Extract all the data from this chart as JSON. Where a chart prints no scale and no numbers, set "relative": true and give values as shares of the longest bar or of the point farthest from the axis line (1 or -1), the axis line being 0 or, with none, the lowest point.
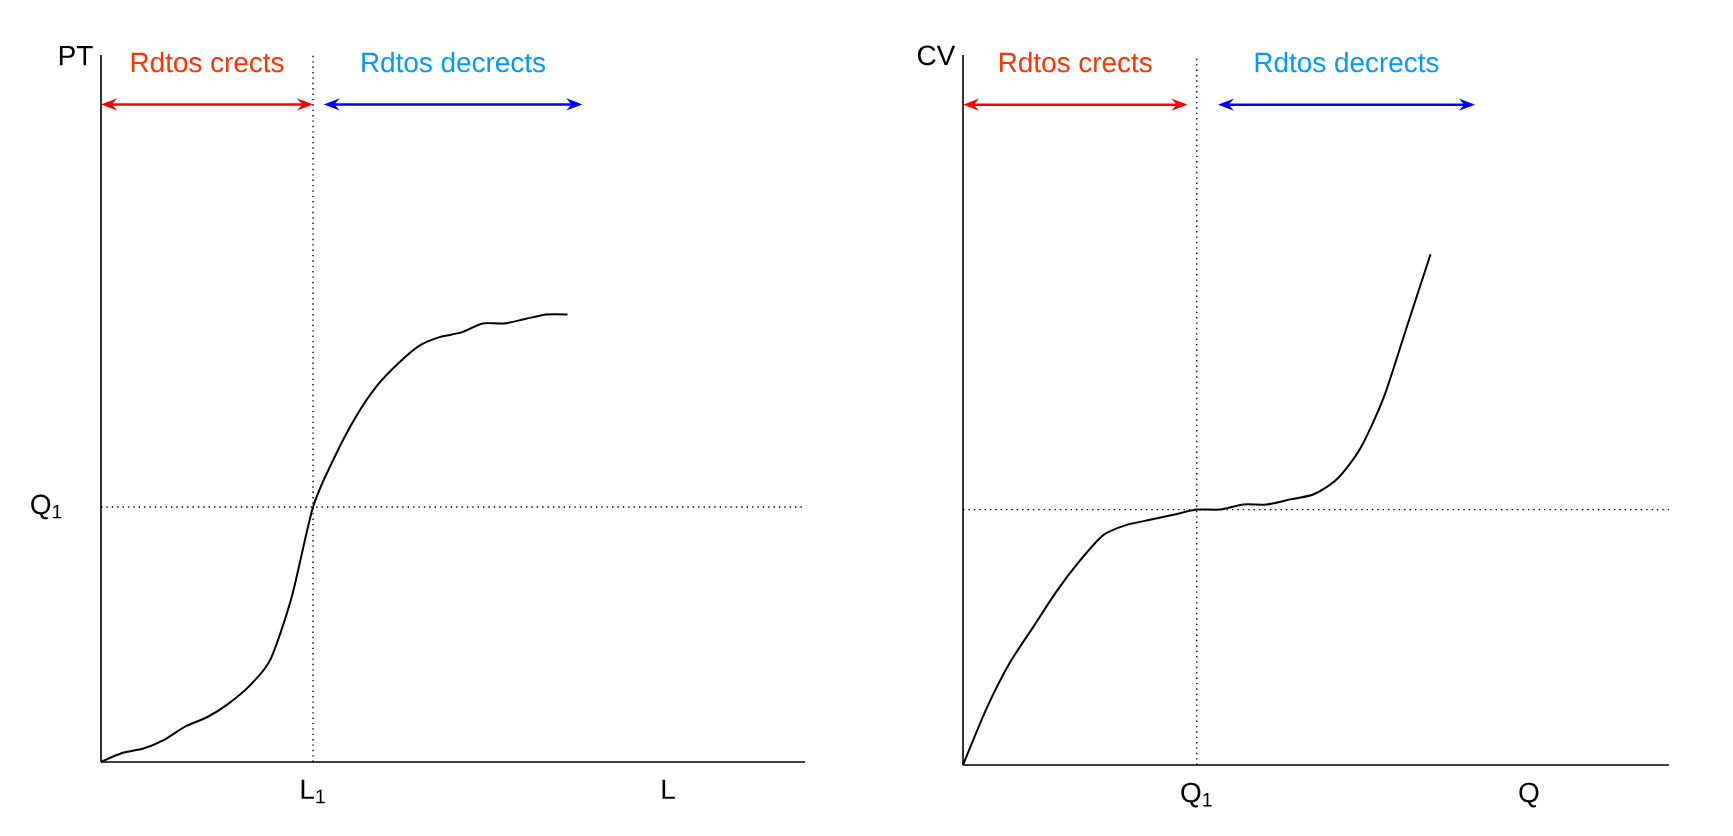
{
  "chart_data": [
    {
      "type": "line",
      "relative": true,
      "xlabel": "L",
      "ylabel": "PT",
      "marker": "none",
      "line_style": "solid",
      "categories": [
        null,
        null,
        null,
        null,
        null,
        null,
        null,
        null,
        null,
        null,
        null,
        null,
        null,
        null,
        null,
        null,
        null,
        null,
        null,
        null,
        null,
        null,
        null
      ],
      "series": [
        {
          "color": "#000000",
          "values": [
            0,
            0.02,
            0.03,
            0.05,
            0.08,
            0.1,
            0.13,
            0.17,
            0.23,
            0.37,
            0.57,
            0.68,
            0.77,
            0.84,
            0.89,
            0.93,
            0.95,
            0.96,
            0.98,
            0.98,
            0.99,
            1.0,
            1.0
          ]
        }
      ],
      "ref_lines": [
        {
          "axis": "y",
          "value": 0.57,
          "label": "Q$_{1}$",
          "line_style": "dotted",
          "color": "#000000"
        }
      ],
      "annotations": [
        "Rdtos crects",
        "Rdtos decrects",
        "L$_{1}$"
      ]
    },
    {
      "type": "line",
      "relative": true,
      "xlabel": "Q",
      "ylabel": "CV",
      "marker": "none",
      "line_style": "solid",
      "categories": [
        null,
        null,
        null,
        null,
        null,
        null,
        null,
        null,
        null,
        null,
        null,
        null,
        null,
        null,
        null,
        null,
        null,
        null,
        null,
        null,
        null
      ],
      "series": [
        {
          "color": "#000000",
          "values": [
            0,
            0.11,
            0.2,
            0.27,
            0.34,
            0.4,
            0.45,
            0.47,
            0.48,
            0.49,
            0.5,
            0.5,
            0.51,
            0.51,
            0.52,
            0.53,
            0.56,
            0.62,
            0.72,
            0.86,
            1.0
          ]
        }
      ],
      "ref_lines": [
        {
          "axis": "y",
          "value": 0.5,
          "line_style": "dotted",
          "color": "#000000"
        }
      ],
      "annotations": [
        "Rdtos crects",
        "Rdtos decrects",
        "Q$_{1}$"
      ]
    }
  ]
}
